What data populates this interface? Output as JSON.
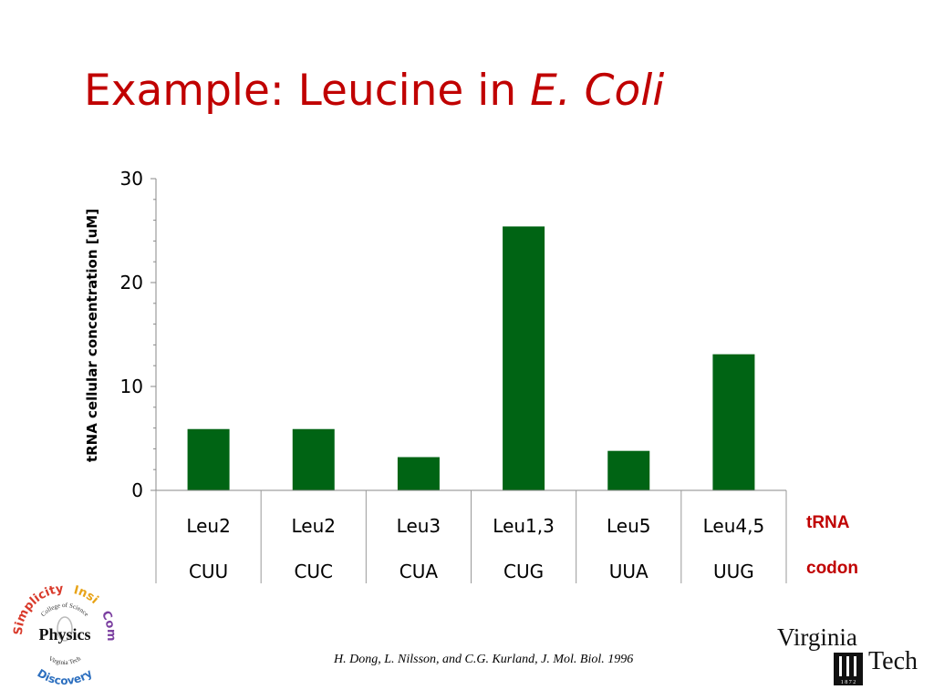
{
  "title": {
    "main": "Example: Leucine in ",
    "italic": "E. Coli",
    "color": "#c00000"
  },
  "chart_data": {
    "type": "bar",
    "ylabel": "tRNA cellular concentration [uM]",
    "ylim": [
      0,
      30
    ],
    "yticks": [
      0,
      10,
      20,
      30
    ],
    "grid": false,
    "bar_color": "#006414",
    "categories": [
      {
        "trna": "Leu2",
        "codon": "CUU"
      },
      {
        "trna": "Leu2",
        "codon": "CUC"
      },
      {
        "trna": "Leu3",
        "codon": "CUA"
      },
      {
        "trna": "Leu1,3",
        "codon": "CUG"
      },
      {
        "trna": "Leu5",
        "codon": "UUA"
      },
      {
        "trna": "Leu4,5",
        "codon": "UUG"
      }
    ],
    "values": [
      5.9,
      5.9,
      3.2,
      25.4,
      3.8,
      13.1
    ],
    "row_labels": {
      "trna": "tRNA",
      "codon": "codon",
      "color": "#c00000"
    }
  },
  "citation": "H. Dong, L. Nilsson, and C.G. Kurland, J. Mol. Biol. 1996",
  "logos": {
    "physics": {
      "center": "Physics",
      "top": "College of Science",
      "bottom": "Virginia Tech",
      "ring_words": [
        {
          "text": "Simplicity",
          "color": "#d93a2b"
        },
        {
          "text": "Insi",
          "color": "#e8a317"
        },
        {
          "text": "Complexity",
          "color": "#7b3fa0"
        },
        {
          "text": "Discovery",
          "color": "#2c6fbf"
        }
      ]
    },
    "virginia_tech": {
      "line1": "Virginia",
      "line2": "Tech",
      "year": "1 8 7 2"
    }
  }
}
